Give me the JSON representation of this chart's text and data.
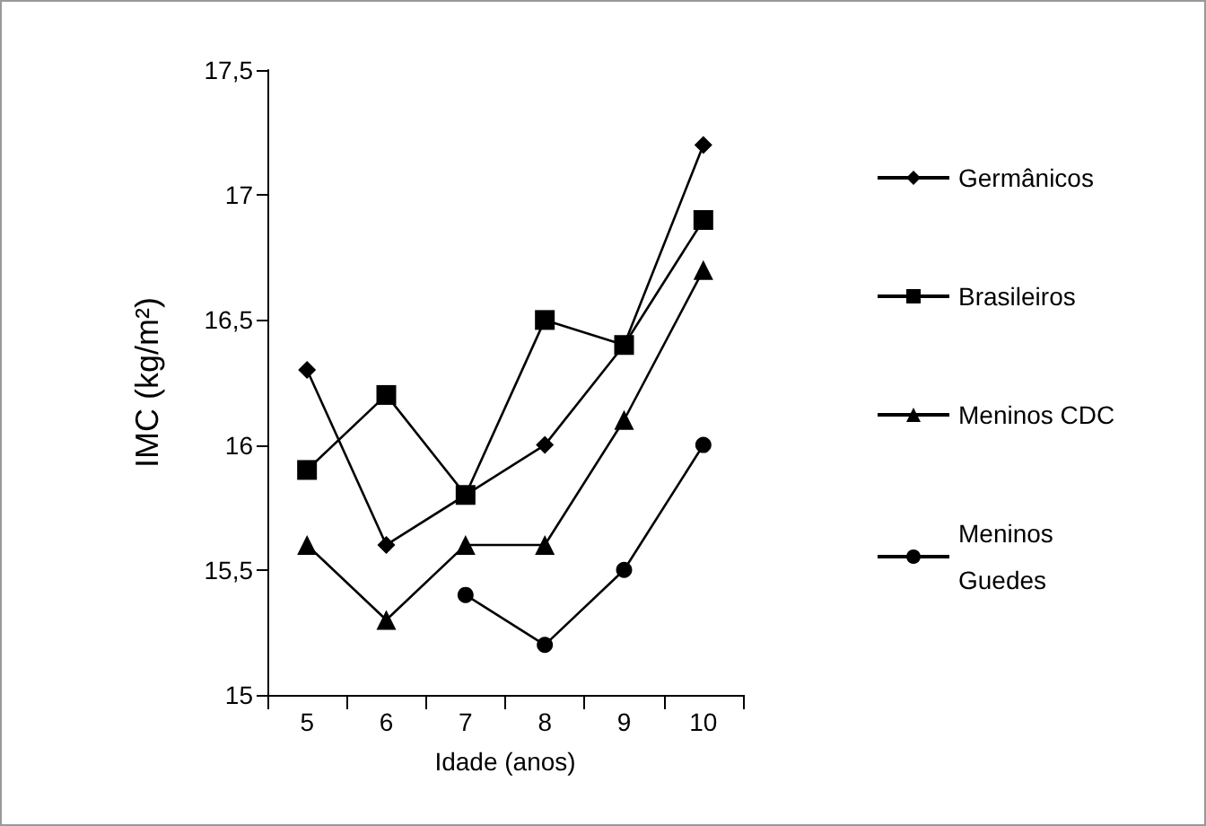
{
  "chart_data": {
    "type": "line",
    "xlabel": "Idade (anos)",
    "ylabel": "IMC (kg/m²)",
    "categories": [
      "5",
      "6",
      "7",
      "8",
      "9",
      "10"
    ],
    "series": [
      {
        "name": "Germânicos",
        "color": "#000000",
        "marker": "diamond",
        "values": [
          16.3,
          15.6,
          15.8,
          16.0,
          16.4,
          17.2
        ]
      },
      {
        "name": "Brasileiros",
        "color": "#000000",
        "marker": "square",
        "values": [
          15.9,
          16.2,
          15.8,
          16.5,
          16.4,
          16.9
        ]
      },
      {
        "name": "Meninos CDC",
        "color": "#000000",
        "marker": "triangle",
        "values": [
          15.6,
          15.3,
          15.6,
          15.6,
          16.1,
          16.7
        ]
      },
      {
        "name": "Meninos Guedes",
        "color": "#000000",
        "marker": "circle",
        "values": [
          null,
          null,
          15.4,
          15.2,
          15.5,
          16.0
        ]
      }
    ],
    "ylim": [
      15,
      17.5
    ],
    "yticks": [
      15,
      {
        "value": 15.5,
        "label": "15,5"
      },
      16,
      {
        "value": 16.5,
        "label": "16,5"
      },
      17,
      {
        "value": 17.5,
        "label": "17,5"
      }
    ],
    "grid": false,
    "legend": "right",
    "line_style": "solid"
  }
}
